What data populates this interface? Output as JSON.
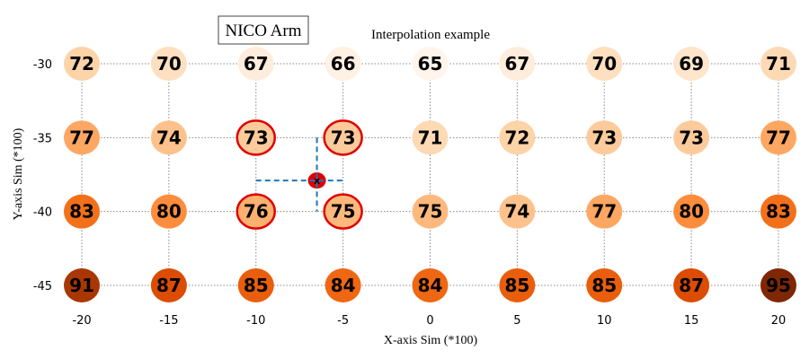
{
  "chart_data": {
    "type": "heatmap",
    "title": "Interpolation example",
    "label_box": "NICO Arm",
    "xlabel": "X-axis Sim (*100)",
    "ylabel": "Y-axis Sim (*100)",
    "x": [
      -20,
      -15,
      -10,
      -5,
      0,
      5,
      10,
      15,
      20
    ],
    "y": [
      -30,
      -35,
      -40,
      -45
    ],
    "xlim": [
      -20,
      20
    ],
    "ylim": [
      -45,
      -30
    ],
    "grid": true,
    "colormap": "Oranges",
    "value_range": [
      65,
      95
    ],
    "values": [
      [
        72,
        70,
        67,
        66,
        65,
        67,
        70,
        69,
        71
      ],
      [
        77,
        74,
        73,
        73,
        71,
        72,
        73,
        73,
        77
      ],
      [
        83,
        80,
        76,
        75,
        75,
        74,
        77,
        80,
        83
      ],
      [
        91,
        87,
        85,
        84,
        84,
        85,
        85,
        87,
        95
      ]
    ],
    "highlighted_cells": [
      {
        "x": -10,
        "y": -35
      },
      {
        "x": -5,
        "y": -35
      },
      {
        "x": -10,
        "y": -40
      },
      {
        "x": -5,
        "y": -40
      }
    ],
    "interpolation_point": {
      "x": -6.5,
      "y": -37.9,
      "label": "x"
    },
    "colors": {
      "highlight": "#e00000",
      "interp_point": "#e00000",
      "interp_lines": "#1f77b4",
      "grid": "#888888"
    }
  }
}
